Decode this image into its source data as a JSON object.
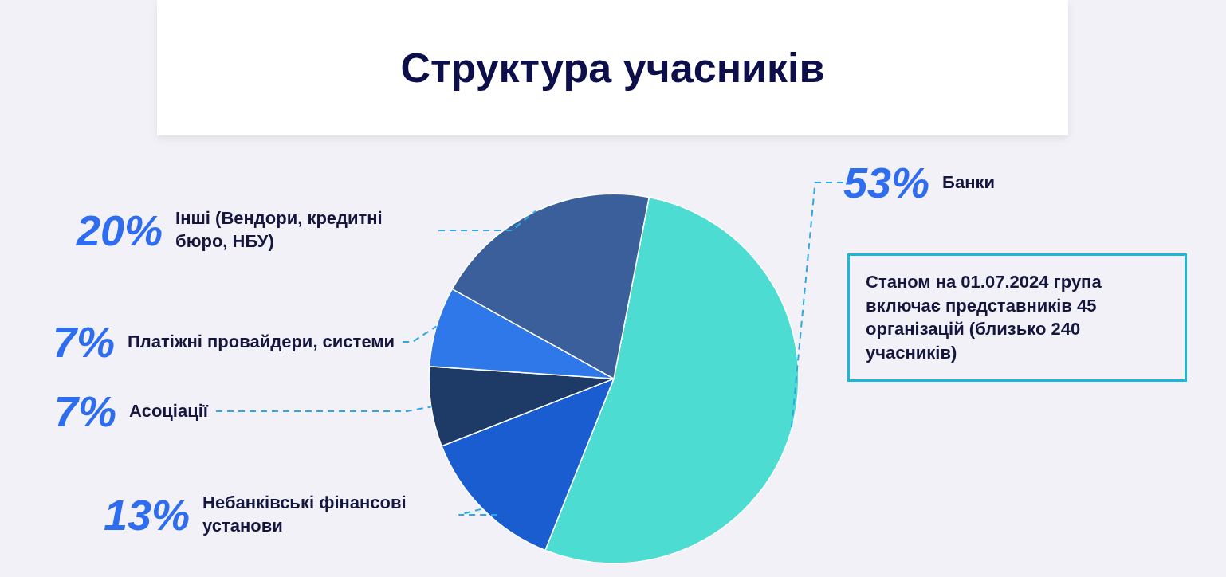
{
  "chart_data": {
    "type": "pie",
    "title": "Структура учасників",
    "categories": [
      "Банки",
      "Небанківські фінансові установи",
      "Асоціації",
      "Платіжні провайдери, системи",
      "Інші (Вендори, кредитні бюро, НБУ)"
    ],
    "values": [
      53,
      13,
      7,
      7,
      20
    ],
    "value_labels": [
      "53%",
      "13%",
      "7%",
      "7%",
      "20%"
    ],
    "colors": [
      "#4ddcd2",
      "#1a5dd0",
      "#1e3a66",
      "#2e78ea",
      "#3a5f9a"
    ],
    "annotations": [
      "Станом на 01.07.2024 група включає представників 45 організацій (близько 240 учасників)"
    ]
  }
}
